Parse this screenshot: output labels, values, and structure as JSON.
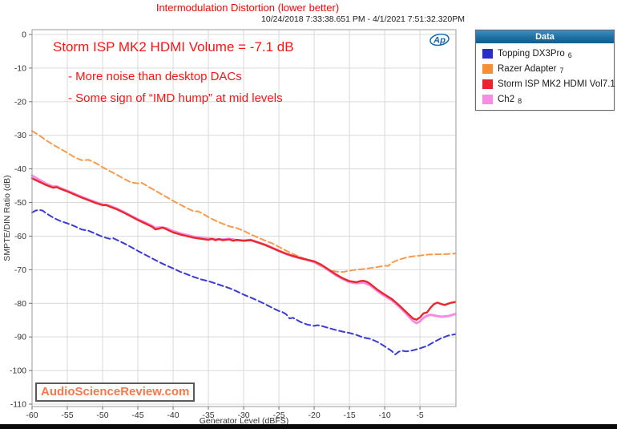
{
  "header": {
    "title": "Intermodulation Distortion (lower better)",
    "date_range": "10/24/2018 7:33:38.651 PM - 4/1/2021 7:51:32.320PM"
  },
  "annotations": {
    "line1": "Storm ISP MK2 HDMI Volume = -7.1 dB",
    "line2": "- More noise than desktop DACs",
    "line3": "- Some sign of “IMD hump” at mid levels"
  },
  "watermark": "AudioScienceReview.com",
  "ap_logo_text": "Ap",
  "legend": {
    "title": "Data",
    "items": [
      {
        "label": "Topping DX3Pro",
        "num": "6",
        "color": "#2b2bce"
      },
      {
        "label": "Razer Adapter",
        "num": "7",
        "color": "#f68e35"
      },
      {
        "label": "Storm ISP MK2 HDMI Vol7.1",
        "num": "8",
        "color": "#e8232e"
      },
      {
        "label": "Ch2",
        "num": "8",
        "color": "#f78ce4"
      }
    ]
  },
  "chart_data": {
    "type": "line",
    "title": "Intermodulation Distortion (lower better)",
    "xlabel": "Generator Level (dBFS)",
    "ylabel": "SMPTE/DIN Ratio (dB)",
    "xlim": [
      -60,
      0.1
    ],
    "ylim": [
      -110,
      0
    ],
    "x_ticks": [
      -60,
      -55,
      -50,
      -45,
      -40,
      -35,
      -30,
      -25,
      -20,
      -15,
      -10,
      -5
    ],
    "y_ticks": [
      0,
      -10,
      -20,
      -30,
      -40,
      -50,
      -60,
      -70,
      -80,
      -90,
      -100,
      -110
    ],
    "grid": true,
    "legend_position": "top-right",
    "grid_color": "#d9d9d9",
    "border_color": "#9a9a9a",
    "tick_color": "#707070",
    "tick_label_color": "#333333",
    "series": [
      {
        "name": "Topping DX3Pro",
        "channel": "6",
        "color": "#3a3ad4",
        "style": "dashed",
        "width": 2,
        "points": [
          [
            -60,
            -53.0
          ],
          [
            -59.5,
            -52.4
          ],
          [
            -59,
            -52.2
          ],
          [
            -58.5,
            -52.4
          ],
          [
            -58,
            -53.2
          ],
          [
            -57,
            -54.5
          ],
          [
            -56,
            -55.5
          ],
          [
            -55,
            -56.2
          ],
          [
            -54,
            -57.0
          ],
          [
            -53,
            -58.0
          ],
          [
            -52,
            -58.4
          ],
          [
            -51,
            -59.3
          ],
          [
            -50,
            -60.2
          ],
          [
            -49,
            -60.8
          ],
          [
            -48.5,
            -60.6
          ],
          [
            -48,
            -61.1
          ],
          [
            -47,
            -62.1
          ],
          [
            -46,
            -63.2
          ],
          [
            -45,
            -64.4
          ],
          [
            -44,
            -65.5
          ],
          [
            -43,
            -66.6
          ],
          [
            -42,
            -67.7
          ],
          [
            -41,
            -68.7
          ],
          [
            -40,
            -69.6
          ],
          [
            -39,
            -70.6
          ],
          [
            -38,
            -71.4
          ],
          [
            -37,
            -72.2
          ],
          [
            -36,
            -72.9
          ],
          [
            -35,
            -73.4
          ],
          [
            -34,
            -74.1
          ],
          [
            -33,
            -74.8
          ],
          [
            -32,
            -75.5
          ],
          [
            -31,
            -76.4
          ],
          [
            -30,
            -77.4
          ],
          [
            -29,
            -78.3
          ],
          [
            -28,
            -79.2
          ],
          [
            -27,
            -80.2
          ],
          [
            -26,
            -81.3
          ],
          [
            -25,
            -82.3
          ],
          [
            -24.5,
            -82.6
          ],
          [
            -24,
            -83.2
          ],
          [
            -23.5,
            -84.5
          ],
          [
            -23,
            -84.3
          ],
          [
            -22.5,
            -84.9
          ],
          [
            -22,
            -85.5
          ],
          [
            -21,
            -86.3
          ],
          [
            -20,
            -86.7
          ],
          [
            -19.5,
            -86.5
          ],
          [
            -19,
            -86.7
          ],
          [
            -18,
            -87.3
          ],
          [
            -17,
            -87.9
          ],
          [
            -16,
            -88.4
          ],
          [
            -15,
            -88.8
          ],
          [
            -14,
            -89.4
          ],
          [
            -13,
            -90.2
          ],
          [
            -12,
            -90.6
          ],
          [
            -11,
            -91.5
          ],
          [
            -10,
            -92.8
          ],
          [
            -9,
            -94.2
          ],
          [
            -8.5,
            -95.2
          ],
          [
            -8,
            -94.4
          ],
          [
            -7.5,
            -94.1
          ],
          [
            -7,
            -94.3
          ],
          [
            -6.5,
            -94.2
          ],
          [
            -6,
            -94.0
          ],
          [
            -5,
            -93.4
          ],
          [
            -4,
            -92.7
          ],
          [
            -3,
            -91.5
          ],
          [
            -2,
            -90.4
          ],
          [
            -1,
            -89.6
          ],
          [
            0,
            -89.2
          ]
        ]
      },
      {
        "name": "Razer Adapter",
        "channel": "7",
        "color": "#f89a4d",
        "style": "dashed",
        "width": 2,
        "points": [
          [
            -60,
            -28.7
          ],
          [
            -59,
            -30.0
          ],
          [
            -58,
            -31.5
          ],
          [
            -57,
            -32.8
          ],
          [
            -56,
            -34.0
          ],
          [
            -55,
            -35.2
          ],
          [
            -54,
            -36.5
          ],
          [
            -53,
            -37.4
          ],
          [
            -52.5,
            -37.4
          ],
          [
            -52,
            -37.3
          ],
          [
            -51,
            -38.2
          ],
          [
            -50,
            -39.5
          ],
          [
            -49,
            -40.6
          ],
          [
            -48,
            -41.7
          ],
          [
            -47,
            -42.9
          ],
          [
            -46,
            -44.0
          ],
          [
            -45,
            -44.3
          ],
          [
            -44.5,
            -44.1
          ],
          [
            -44,
            -44.7
          ],
          [
            -43,
            -45.9
          ],
          [
            -42,
            -47.1
          ],
          [
            -41,
            -48.3
          ],
          [
            -40,
            -49.5
          ],
          [
            -39,
            -50.6
          ],
          [
            -38,
            -51.7
          ],
          [
            -37,
            -52.7
          ],
          [
            -36.5,
            -52.6
          ],
          [
            -36,
            -53.1
          ],
          [
            -35,
            -54.3
          ],
          [
            -34,
            -55.4
          ],
          [
            -33,
            -56.3
          ],
          [
            -32,
            -57.1
          ],
          [
            -31,
            -57.6
          ],
          [
            -30,
            -58.4
          ],
          [
            -29,
            -59.5
          ],
          [
            -28,
            -60.4
          ],
          [
            -27,
            -61.3
          ],
          [
            -26,
            -62.1
          ],
          [
            -25,
            -63.2
          ],
          [
            -24,
            -64.3
          ],
          [
            -23,
            -65.3
          ],
          [
            -22,
            -66.2
          ],
          [
            -21,
            -67.0
          ],
          [
            -20,
            -67.9
          ],
          [
            -19,
            -69.0
          ],
          [
            -18,
            -70.0
          ],
          [
            -17,
            -70.5
          ],
          [
            -16,
            -70.7
          ],
          [
            -15,
            -70.3
          ],
          [
            -14,
            -70.0
          ],
          [
            -13,
            -69.8
          ],
          [
            -12,
            -69.5
          ],
          [
            -11,
            -69.2
          ],
          [
            -10,
            -68.8
          ],
          [
            -9.5,
            -68.9
          ],
          [
            -9,
            -67.9
          ],
          [
            -8,
            -67.0
          ],
          [
            -7,
            -66.4
          ],
          [
            -6,
            -66.0
          ],
          [
            -5,
            -65.8
          ],
          [
            -4,
            -65.5
          ],
          [
            -3,
            -65.4
          ],
          [
            -2,
            -65.4
          ],
          [
            -1,
            -65.3
          ],
          [
            0,
            -65.2
          ]
        ]
      },
      {
        "name": "Ch2",
        "channel": "8",
        "color": "#f78ce4",
        "style": "solid",
        "width": 3,
        "points": [
          [
            -60,
            -42.0
          ],
          [
            -59,
            -43.2
          ],
          [
            -58,
            -44.4
          ],
          [
            -57,
            -45.3
          ],
          [
            -56.5,
            -45.2
          ],
          [
            -56,
            -45.7
          ],
          [
            -55,
            -46.5
          ],
          [
            -54,
            -47.4
          ],
          [
            -53,
            -48.3
          ],
          [
            -52,
            -49.1
          ],
          [
            -51,
            -49.9
          ],
          [
            -50,
            -50.6
          ],
          [
            -49,
            -51.0
          ],
          [
            -48,
            -51.8
          ],
          [
            -47,
            -52.8
          ],
          [
            -46,
            -53.9
          ],
          [
            -45,
            -55.0
          ],
          [
            -44,
            -55.9
          ],
          [
            -43,
            -56.9
          ],
          [
            -42.5,
            -57.6
          ],
          [
            -42,
            -57.4
          ],
          [
            -41,
            -57.6
          ],
          [
            -40,
            -58.5
          ],
          [
            -39,
            -59.2
          ],
          [
            -38,
            -59.7
          ],
          [
            -37,
            -60.2
          ],
          [
            -36,
            -60.5
          ],
          [
            -35,
            -60.7
          ],
          [
            -34,
            -60.9
          ],
          [
            -33,
            -61.0
          ],
          [
            -32,
            -60.8
          ],
          [
            -31,
            -61.2
          ],
          [
            -30,
            -61.3
          ],
          [
            -29,
            -61.1
          ],
          [
            -28,
            -61.8
          ],
          [
            -27,
            -62.5
          ],
          [
            -26,
            -63.4
          ],
          [
            -25,
            -64.4
          ],
          [
            -24,
            -65.3
          ],
          [
            -23,
            -66.0
          ],
          [
            -22,
            -66.6
          ],
          [
            -21,
            -67.1
          ],
          [
            -20,
            -67.7
          ],
          [
            -19,
            -68.7
          ],
          [
            -18,
            -70.1
          ],
          [
            -17,
            -71.5
          ],
          [
            -16,
            -72.7
          ],
          [
            -15,
            -73.7
          ],
          [
            -14,
            -74.0
          ],
          [
            -13,
            -73.8
          ],
          [
            -12,
            -74.7
          ],
          [
            -11,
            -76.4
          ],
          [
            -10,
            -77.8
          ],
          [
            -9,
            -79.1
          ],
          [
            -8,
            -80.9
          ],
          [
            -7,
            -83.0
          ],
          [
            -6,
            -85.2
          ],
          [
            -5.5,
            -85.9
          ],
          [
            -5,
            -85.4
          ],
          [
            -4.5,
            -84.3
          ],
          [
            -4,
            -83.7
          ],
          [
            -3.5,
            -83.4
          ],
          [
            -3,
            -83.6
          ],
          [
            -2.5,
            -83.8
          ],
          [
            -2,
            -84.0
          ],
          [
            -1.5,
            -83.9
          ],
          [
            -1,
            -83.8
          ],
          [
            -0.5,
            -83.5
          ],
          [
            0,
            -83.2
          ]
        ]
      },
      {
        "name": "Storm ISP MK2 HDMI Vol7.1",
        "channel": "8",
        "color": "#e8282f",
        "style": "solid",
        "width": 2.4,
        "points": [
          [
            -60,
            -42.8
          ],
          [
            -59,
            -43.8
          ],
          [
            -58,
            -44.8
          ],
          [
            -57,
            -45.6
          ],
          [
            -56.5,
            -45.4
          ],
          [
            -56,
            -45.9
          ],
          [
            -55,
            -46.7
          ],
          [
            -54,
            -47.6
          ],
          [
            -53,
            -48.5
          ],
          [
            -52,
            -49.3
          ],
          [
            -51,
            -50.1
          ],
          [
            -50,
            -50.8
          ],
          [
            -49.5,
            -50.7
          ],
          [
            -49,
            -51.2
          ],
          [
            -48,
            -52.0
          ],
          [
            -47,
            -53.0
          ],
          [
            -46,
            -54.1
          ],
          [
            -45,
            -55.2
          ],
          [
            -44,
            -56.2
          ],
          [
            -43,
            -57.2
          ],
          [
            -42.5,
            -58.0
          ],
          [
            -42,
            -57.8
          ],
          [
            -41.5,
            -57.4
          ],
          [
            -41,
            -57.9
          ],
          [
            -40,
            -58.9
          ],
          [
            -39,
            -59.5
          ],
          [
            -38,
            -60.0
          ],
          [
            -37,
            -60.5
          ],
          [
            -36,
            -60.8
          ],
          [
            -35,
            -61.1
          ],
          [
            -34.5,
            -60.8
          ],
          [
            -34,
            -61.2
          ],
          [
            -33.5,
            -60.9
          ],
          [
            -33,
            -61.2
          ],
          [
            -32,
            -61.0
          ],
          [
            -31.5,
            -61.4
          ],
          [
            -31,
            -61.1
          ],
          [
            -30,
            -61.4
          ],
          [
            -29,
            -61.2
          ],
          [
            -28,
            -61.9
          ],
          [
            -27,
            -62.6
          ],
          [
            -26,
            -63.5
          ],
          [
            -25,
            -64.4
          ],
          [
            -24,
            -65.2
          ],
          [
            -23,
            -65.9
          ],
          [
            -22,
            -66.5
          ],
          [
            -21,
            -67.0
          ],
          [
            -20,
            -67.5
          ],
          [
            -19,
            -68.5
          ],
          [
            -18,
            -69.9
          ],
          [
            -17,
            -71.3
          ],
          [
            -16,
            -72.5
          ],
          [
            -15,
            -73.4
          ],
          [
            -14,
            -73.7
          ],
          [
            -13.5,
            -73.4
          ],
          [
            -13,
            -73.3
          ],
          [
            -12.5,
            -73.6
          ],
          [
            -12,
            -74.3
          ],
          [
            -11,
            -76.0
          ],
          [
            -10,
            -77.4
          ],
          [
            -9,
            -78.7
          ],
          [
            -8,
            -80.5
          ],
          [
            -7,
            -82.5
          ],
          [
            -6,
            -84.5
          ],
          [
            -5.5,
            -84.9
          ],
          [
            -5,
            -84.2
          ],
          [
            -4.5,
            -83.0
          ],
          [
            -4,
            -82.7
          ],
          [
            -3.5,
            -81.3
          ],
          [
            -3,
            -80.2
          ],
          [
            -2.5,
            -79.8
          ],
          [
            -2,
            -80.2
          ],
          [
            -1.5,
            -80.5
          ],
          [
            -1,
            -80.1
          ],
          [
            -0.5,
            -79.8
          ],
          [
            0,
            -79.6
          ]
        ]
      }
    ]
  }
}
